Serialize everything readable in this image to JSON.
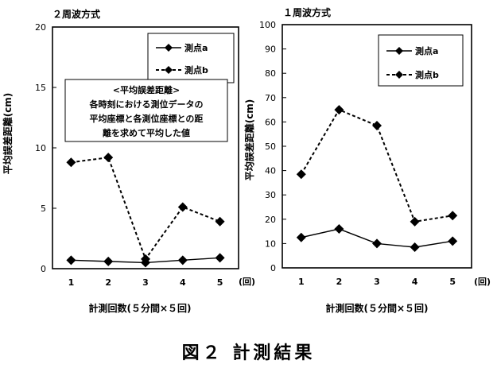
{
  "caption": "図２ 計測結果",
  "chart_data": [
    {
      "type": "line",
      "title": "２周波方式",
      "xlabel": "計測回数(５分間×５回)",
      "ylabel": "平均誤差距離(cm)",
      "x_unit": "(回)",
      "x": [
        1,
        2,
        3,
        4,
        5
      ],
      "ylim": [
        0,
        20
      ],
      "yticks": [
        0,
        5,
        10,
        15,
        20
      ],
      "grid": false,
      "legend_position": "top-right",
      "series": [
        {
          "name": "測点a",
          "style": "solid",
          "values": [
            0.7,
            0.6,
            0.5,
            0.7,
            0.9
          ]
        },
        {
          "name": "測点b",
          "style": "dashed",
          "values": [
            8.8,
            9.2,
            0.8,
            5.1,
            3.9
          ]
        }
      ],
      "annotation": {
        "lines": [
          "<平均誤差距離>",
          "各時刻における測位データの",
          "平均座標と各測位座標との距",
          "離を求めて平均した値"
        ]
      }
    },
    {
      "type": "line",
      "title": "１周波方式",
      "xlabel": "計測回数(５分間×５回)",
      "ylabel": "平均誤差距離(cm)",
      "x_unit": "(回)",
      "x": [
        1,
        2,
        3,
        4,
        5
      ],
      "ylim": [
        0,
        100
      ],
      "yticks": [
        0,
        10,
        20,
        30,
        40,
        50,
        60,
        70,
        80,
        90,
        100
      ],
      "grid": false,
      "legend_position": "top-right",
      "series": [
        {
          "name": "測点a",
          "style": "solid",
          "values": [
            12.5,
            16,
            10,
            8.5,
            11
          ]
        },
        {
          "name": "測点b",
          "style": "dashed",
          "values": [
            38.5,
            65,
            58.5,
            19,
            21.5
          ]
        }
      ]
    }
  ]
}
